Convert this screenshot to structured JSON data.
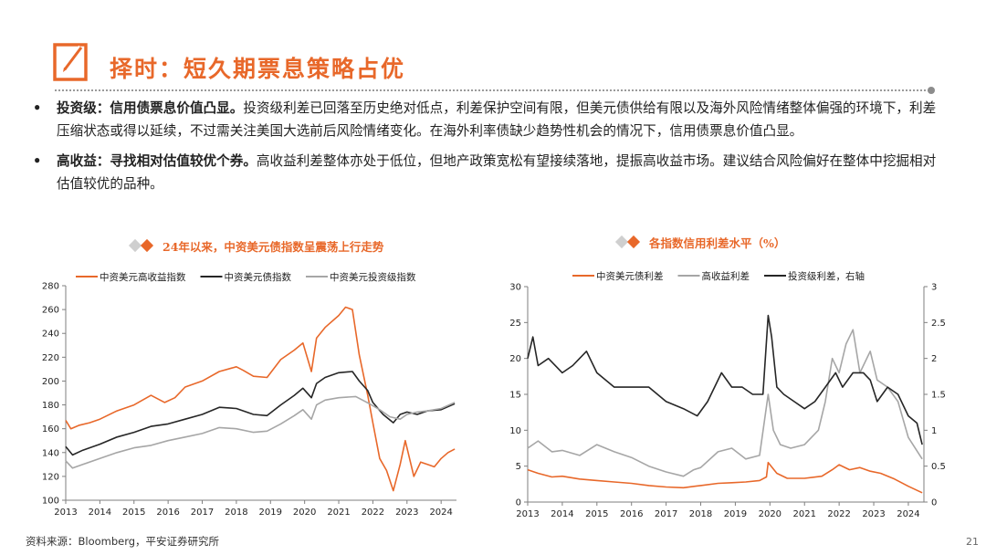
{
  "slide": {
    "title": "择时：短久期票息策略占优",
    "page_number": "21",
    "source": "资料来源：Bloomberg，平安证券研究所"
  },
  "bullets": [
    {
      "lead": "投资级：信用债票息价值凸显。",
      "body": "投资级利差已回落至历史绝对低点，利差保护空间有限，但美元债供给有限以及海外风险情绪整体偏强的环境下，利差压缩状态或得以延续，不过需关注美国大选前后风险情绪变化。在海外利率债缺少趋势性机会的情况下，信用债票息价值凸显。"
    },
    {
      "lead": "高收益：寻找相对估值较优个券。",
      "body": "高收益利差整体亦处于低位，但地产政策宽松有望接续落地，提振高收益市场。建议结合风险偏好在整体中挖掘相对估值较优的品种。"
    }
  ],
  "colors": {
    "accent": "#e8682a",
    "dark": "#262626",
    "grey": "#a6a6a6"
  },
  "chart_data": [
    {
      "type": "line",
      "title": "24年以来，中资美元债指数呈震荡上行走势",
      "xlabel": "",
      "ylabel": "",
      "x_ticks": [
        "2013",
        "2014",
        "2015",
        "2016",
        "2017",
        "2018",
        "2019",
        "2020",
        "2021",
        "2022",
        "2023",
        "2024"
      ],
      "xlim": [
        2013.0,
        2024.45
      ],
      "ylim": [
        100,
        280
      ],
      "y_ticks": [
        100,
        120,
        140,
        160,
        180,
        200,
        220,
        240,
        260,
        280
      ],
      "legend_position": "top",
      "series": [
        {
          "name": "中资美元高收益指数",
          "color": "#e8682a",
          "x": [
            2013.0,
            2013.15,
            2013.4,
            2013.7,
            2014.0,
            2014.5,
            2015.0,
            2015.5,
            2015.9,
            2016.2,
            2016.5,
            2017.0,
            2017.5,
            2018.0,
            2018.2,
            2018.5,
            2018.9,
            2019.3,
            2019.7,
            2019.95,
            2020.2,
            2020.35,
            2020.6,
            2021.0,
            2021.2,
            2021.4,
            2021.6,
            2021.85,
            2022.0,
            2022.2,
            2022.4,
            2022.6,
            2022.8,
            2022.95,
            2023.2,
            2023.4,
            2023.6,
            2023.8,
            2024.0,
            2024.2,
            2024.4
          ],
          "y": [
            167,
            160,
            163,
            165,
            168,
            175,
            180,
            188,
            182,
            186,
            195,
            200,
            208,
            212,
            209,
            204,
            203,
            218,
            226,
            232,
            208,
            236,
            245,
            255,
            262,
            260,
            222,
            188,
            165,
            135,
            125,
            108,
            130,
            150,
            120,
            132,
            130,
            128,
            135,
            140,
            143
          ]
        },
        {
          "name": "中资美元债指数",
          "color": "#262626",
          "x": [
            2013.0,
            2013.2,
            2013.5,
            2014.0,
            2014.5,
            2015.0,
            2015.5,
            2016.0,
            2016.5,
            2017.0,
            2017.5,
            2018.0,
            2018.5,
            2018.9,
            2019.3,
            2019.7,
            2019.95,
            2020.2,
            2020.35,
            2020.6,
            2021.0,
            2021.4,
            2021.6,
            2021.85,
            2022.0,
            2022.3,
            2022.6,
            2022.8,
            2023.0,
            2023.3,
            2023.6,
            2024.0,
            2024.4
          ],
          "y": [
            145,
            138,
            142,
            147,
            153,
            157,
            162,
            164,
            168,
            172,
            178,
            177,
            172,
            171,
            180,
            188,
            194,
            186,
            198,
            203,
            207,
            208,
            200,
            192,
            182,
            172,
            165,
            172,
            174,
            172,
            175,
            176,
            181
          ]
        },
        {
          "name": "中资美元投资级指数",
          "color": "#a6a6a6",
          "x": [
            2013.0,
            2013.2,
            2013.5,
            2014.0,
            2014.5,
            2015.0,
            2015.5,
            2016.0,
            2016.5,
            2017.0,
            2017.5,
            2018.0,
            2018.5,
            2018.9,
            2019.3,
            2019.7,
            2019.95,
            2020.2,
            2020.35,
            2020.6,
            2021.0,
            2021.5,
            2021.9,
            2022.2,
            2022.5,
            2022.8,
            2023.0,
            2023.3,
            2023.6,
            2024.0,
            2024.4
          ],
          "y": [
            133,
            127,
            130,
            135,
            140,
            144,
            146,
            150,
            153,
            156,
            161,
            160,
            157,
            158,
            164,
            171,
            176,
            168,
            180,
            184,
            186,
            187,
            181,
            176,
            170,
            168,
            172,
            174,
            175,
            177,
            182
          ]
        }
      ]
    },
    {
      "type": "line",
      "title": "各指数信用利差水平（%）",
      "xlabel": "",
      "ylabel": "",
      "x_ticks": [
        "2013",
        "2014",
        "2015",
        "2016",
        "2017",
        "2018",
        "2019",
        "2020",
        "2021",
        "2022",
        "2023",
        "2024"
      ],
      "xlim": [
        2013.0,
        2024.45
      ],
      "ylim": [
        0,
        30
      ],
      "y_ticks": [
        0,
        5,
        10,
        15,
        20,
        25,
        30
      ],
      "y2lim": [
        0,
        3
      ],
      "y2_ticks": [
        "0",
        "0.5",
        "1",
        "1.5",
        "2",
        "2.5",
        "3"
      ],
      "legend_position": "top",
      "series": [
        {
          "name": "中资美元债利差",
          "axis": "left",
          "color": "#e8682a",
          "x": [
            2013.0,
            2013.3,
            2013.7,
            2014.0,
            2014.5,
            2015.0,
            2015.5,
            2016.0,
            2016.5,
            2017.0,
            2017.5,
            2018.0,
            2018.5,
            2018.9,
            2019.3,
            2019.7,
            2019.9,
            2019.95,
            2020.2,
            2020.5,
            2021.0,
            2021.5,
            2021.8,
            2022.0,
            2022.3,
            2022.6,
            2022.9,
            2023.2,
            2023.6,
            2024.0,
            2024.4
          ],
          "y": [
            4.5,
            4.0,
            3.5,
            3.6,
            3.2,
            3.0,
            2.8,
            2.6,
            2.3,
            2.1,
            2.0,
            2.3,
            2.6,
            2.7,
            2.8,
            3.0,
            3.5,
            5.5,
            4.0,
            3.3,
            3.3,
            3.6,
            4.5,
            5.2,
            4.5,
            4.8,
            4.3,
            4.0,
            3.2,
            2.2,
            1.3
          ]
        },
        {
          "name": "高收益利差",
          "axis": "left",
          "color": "#a6a6a6",
          "x": [
            2013.0,
            2013.3,
            2013.7,
            2014.0,
            2014.5,
            2015.0,
            2015.5,
            2016.0,
            2016.5,
            2017.0,
            2017.5,
            2017.8,
            2018.0,
            2018.5,
            2018.9,
            2019.3,
            2019.7,
            2019.95,
            2020.1,
            2020.3,
            2020.6,
            2021.0,
            2021.4,
            2021.6,
            2021.8,
            2022.0,
            2022.2,
            2022.4,
            2022.6,
            2022.9,
            2023.1,
            2023.4,
            2023.7,
            2024.0,
            2024.4
          ],
          "y": [
            7.5,
            8.5,
            7.0,
            7.2,
            6.5,
            8.0,
            7.0,
            6.2,
            5.0,
            4.2,
            3.6,
            4.5,
            4.8,
            7.0,
            7.5,
            6.0,
            6.5,
            15.0,
            10.0,
            8.0,
            7.5,
            8.0,
            10.0,
            14.0,
            20.0,
            18.0,
            22.0,
            24.0,
            18.0,
            21.0,
            17.0,
            16.0,
            14.0,
            9.0,
            6.0
          ]
        },
        {
          "name": "投资级利差，右轴",
          "axis": "right",
          "color": "#262626",
          "x": [
            2013.0,
            2013.15,
            2013.3,
            2013.6,
            2014.0,
            2014.3,
            2014.7,
            2015.0,
            2015.5,
            2016.0,
            2016.5,
            2017.0,
            2017.5,
            2017.9,
            2018.2,
            2018.6,
            2018.9,
            2019.2,
            2019.5,
            2019.8,
            2019.95,
            2020.05,
            2020.2,
            2020.4,
            2020.7,
            2021.0,
            2021.3,
            2021.6,
            2021.9,
            2022.1,
            2022.4,
            2022.7,
            2022.9,
            2023.1,
            2023.4,
            2023.7,
            2024.0,
            2024.25,
            2024.4
          ],
          "y": [
            2.0,
            2.3,
            1.9,
            2.0,
            1.8,
            1.9,
            2.1,
            1.8,
            1.6,
            1.6,
            1.6,
            1.4,
            1.3,
            1.2,
            1.4,
            1.8,
            1.6,
            1.6,
            1.5,
            1.5,
            2.6,
            2.3,
            1.6,
            1.5,
            1.4,
            1.3,
            1.4,
            1.6,
            1.8,
            1.6,
            1.8,
            1.8,
            1.7,
            1.4,
            1.6,
            1.5,
            1.2,
            1.1,
            0.8
          ]
        }
      ]
    }
  ]
}
